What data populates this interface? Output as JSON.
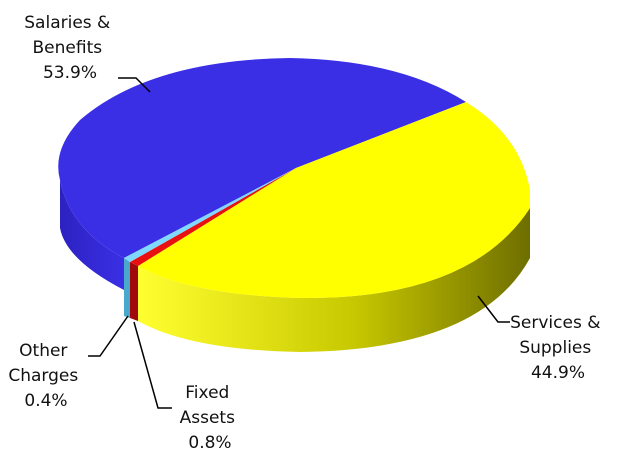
{
  "chart_data": {
    "type": "pie",
    "title": "",
    "style": "3d-tilted",
    "legend": "none",
    "slices": [
      {
        "label_lines": [
          "Salaries &",
          "Benefits"
        ],
        "value_text": "53.9%",
        "value": 53.9,
        "color": "#3b2fe6",
        "side_color": "#2a20b0"
      },
      {
        "label_lines": [
          "Services &",
          "Supplies"
        ],
        "value_text": "44.9%",
        "value": 44.9,
        "color": "#ffff00",
        "side_color": "#8c8c00"
      },
      {
        "label_lines": [
          "Fixed",
          "Assets"
        ],
        "value_text": "0.8%",
        "value": 0.8,
        "color": "#e81010",
        "side_color": "#a00a0a"
      },
      {
        "label_lines": [
          "Other",
          "Charges"
        ],
        "value_text": "0.4%",
        "value": 0.4,
        "color": "#7fd8ff",
        "side_color": "#4aa8cc"
      }
    ]
  }
}
